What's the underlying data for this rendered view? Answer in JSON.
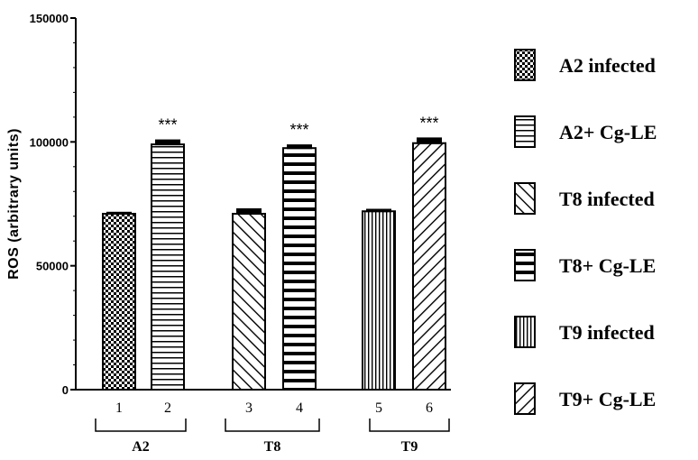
{
  "chart_data": {
    "type": "bar",
    "ylabel": "ROS (arbitrary units)",
    "ylim": [
      0,
      150000
    ],
    "yticks": [
      "0",
      "50000",
      "100000",
      "150000"
    ],
    "grid": false,
    "legend_position": "right",
    "bars": [
      {
        "id": "1",
        "group": "A2",
        "series": "A2 infected",
        "value": 71000,
        "error": 800,
        "pattern": "checker",
        "sig": ""
      },
      {
        "id": "2",
        "group": "A2",
        "series": "A2+ Cg-LE",
        "value": 99000,
        "error": 2000,
        "pattern": "hstripe",
        "sig": "***"
      },
      {
        "id": "3",
        "group": "T8",
        "series": "T8 infected",
        "value": 71000,
        "error": 2200,
        "pattern": "diag-up",
        "sig": ""
      },
      {
        "id": "4",
        "group": "T8",
        "series": "T8+ Cg-LE",
        "value": 97500,
        "error": 1500,
        "pattern": "hstripe-bold",
        "sig": "***"
      },
      {
        "id": "5",
        "group": "T9",
        "series": "T9 infected",
        "value": 72000,
        "error": 1000,
        "pattern": "vstripe",
        "sig": ""
      },
      {
        "id": "6",
        "group": "T9",
        "series": "T9+ Cg-LE",
        "value": 99500,
        "error": 2300,
        "pattern": "diag-down",
        "sig": "***"
      }
    ],
    "groups": [
      "A2",
      "T8",
      "T9"
    ],
    "legend": [
      {
        "label": "A2 infected",
        "pattern": "checker"
      },
      {
        "label": "A2+ Cg-LE",
        "pattern": "hstripe"
      },
      {
        "label": "T8 infected",
        "pattern": "diag-up"
      },
      {
        "label": "T8+ Cg-LE",
        "pattern": "hstripe-bold"
      },
      {
        "label": "T9 infected",
        "pattern": "vstripe"
      },
      {
        "label": "T9+ Cg-LE",
        "pattern": "diag-down"
      }
    ]
  }
}
